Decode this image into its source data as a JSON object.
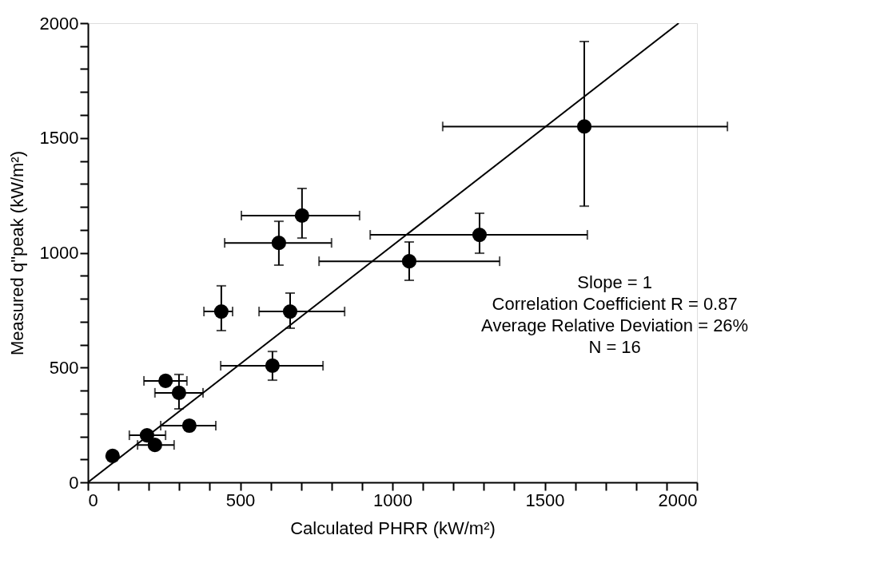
{
  "chart_data": {
    "type": "scatter",
    "xlabel": "Calculated PHRR (kW/m²)",
    "ylabel": "Measured q\"peak (kW/m²)",
    "xlim": [
      0,
      2000
    ],
    "ylim": [
      0,
      2000
    ],
    "xticks": [
      0,
      {
        "value": 100,
        "label": null
      },
      {
        "value": 200,
        "label": null
      },
      {
        "value": 300,
        "label": null
      },
      {
        "value": 400,
        "label": null
      },
      500,
      {
        "value": 600,
        "label": null
      },
      {
        "value": 700,
        "label": null
      },
      {
        "value": 800,
        "label": null
      },
      {
        "value": 900,
        "label": null
      },
      1000,
      {
        "value": 1100,
        "label": null
      },
      {
        "value": 1200,
        "label": null
      },
      {
        "value": 1300,
        "label": null
      },
      {
        "value": 1400,
        "label": null
      },
      1500,
      {
        "value": 1600,
        "label": null
      },
      {
        "value": 1700,
        "label": null
      },
      {
        "value": 1800,
        "label": null
      },
      {
        "value": 1900,
        "label": null
      },
      2000
    ],
    "yticks": [
      0,
      {
        "value": 100,
        "label": null
      },
      {
        "value": 200,
        "label": null
      },
      {
        "value": 300,
        "label": null
      },
      {
        "value": 400,
        "label": null
      },
      500,
      {
        "value": 600,
        "label": null
      },
      {
        "value": 700,
        "label": null
      },
      {
        "value": 800,
        "label": null
      },
      {
        "value": 900,
        "label": null
      },
      1000,
      {
        "value": 1100,
        "label": null
      },
      {
        "value": 1200,
        "label": null
      },
      {
        "value": 1300,
        "label": null
      },
      {
        "value": 1400,
        "label": null
      },
      1500,
      {
        "value": 1600,
        "label": null
      },
      {
        "value": 1700,
        "label": null
      },
      {
        "value": 1800,
        "label": null
      },
      {
        "value": 1900,
        "label": null
      },
      2000
    ],
    "grid": false,
    "marker": "circle",
    "annotations": [
      "Slope = 1",
      "Correlation Coefficient R = 0.87",
      "Average Relative Deviation = 26%",
      "N = 16"
    ],
    "series": [
      {
        "color": "#000000",
        "x": [
          1630,
          703,
          627,
          1286,
          1055,
          438,
          664,
          606,
          333,
          255,
          299,
          194,
          220,
          81
        ],
        "values": [
          1550,
          1162,
          1043,
          1078,
          963,
          744,
          744,
          508,
          247,
          442,
          390,
          205,
          163,
          115
        ],
        "xerrors": [
          [
            1165,
            2100
          ],
          [
            504,
            892
          ],
          [
            449,
            800
          ],
          [
            927,
            1640
          ],
          [
            759,
            1352
          ],
          [
            381,
            475
          ],
          [
            562,
            843
          ],
          [
            436,
            772
          ],
          [
            239,
            420
          ],
          [
            184,
            325
          ],
          [
            220,
            378
          ],
          [
            136,
            255
          ],
          [
            163,
            283
          ],
          null
        ],
        "errors": [
          [
            1203,
            1920
          ],
          [
            1064,
            1280
          ],
          [
            946,
            1137
          ],
          [
            998,
            1172
          ],
          [
            880,
            1047
          ],
          [
            661,
            856
          ],
          [
            671,
            824
          ],
          [
            445,
            570
          ],
          null,
          null,
          [
            320,
            470
          ],
          null,
          null,
          null
        ]
      },
      {
        "type": "line",
        "color": "#000000",
        "marker": "none",
        "x": [
          0,
          1940
        ],
        "values": [
          0,
          2000
        ]
      }
    ]
  }
}
